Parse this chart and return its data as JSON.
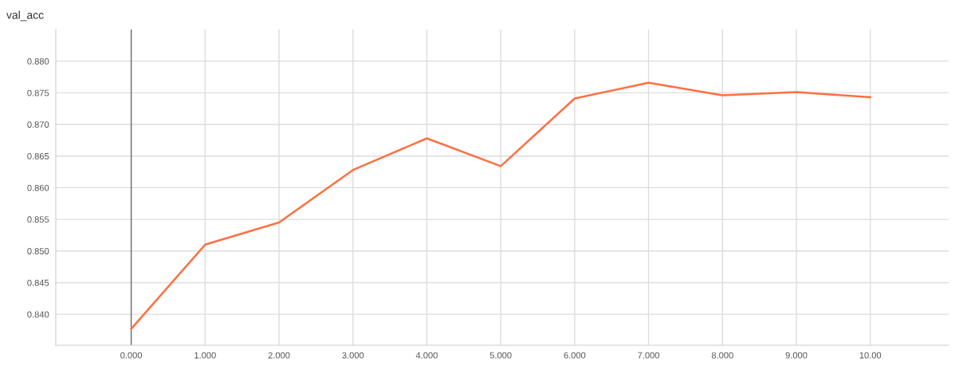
{
  "chart_data": {
    "type": "line",
    "title": "val_acc",
    "x": [
      0,
      1,
      2,
      3,
      4,
      5,
      6,
      7,
      8,
      9,
      10
    ],
    "series": [
      {
        "color": "#ff7043",
        "values": [
          0.8377,
          0.851,
          0.8545,
          0.8628,
          0.8678,
          0.8634,
          0.8741,
          0.8766,
          0.8746,
          0.8751,
          0.8743
        ]
      }
    ],
    "xlim": [
      -1.02,
      11.06
    ],
    "ylim": [
      0.8351,
      0.885
    ],
    "xticks": [
      {
        "value": 0,
        "label": "0.000"
      },
      {
        "value": 1,
        "label": "1.000"
      },
      {
        "value": 2,
        "label": "2.000"
      },
      {
        "value": 3,
        "label": "3.000"
      },
      {
        "value": 4,
        "label": "4.000"
      },
      {
        "value": 5,
        "label": "5.000"
      },
      {
        "value": 6,
        "label": "6.000"
      },
      {
        "value": 7,
        "label": "7.000"
      },
      {
        "value": 8,
        "label": "8.000"
      },
      {
        "value": 9,
        "label": "9.000"
      },
      {
        "value": 10,
        "label": "10.00"
      }
    ],
    "yticks": [
      {
        "value": 0.84,
        "label": "0.840"
      },
      {
        "value": 0.845,
        "label": "0.845"
      },
      {
        "value": 0.85,
        "label": "0.850"
      },
      {
        "value": 0.855,
        "label": "0.855"
      },
      {
        "value": 0.86,
        "label": "0.860"
      },
      {
        "value": 0.865,
        "label": "0.865"
      },
      {
        "value": 0.87,
        "label": "0.870"
      },
      {
        "value": 0.875,
        "label": "0.875"
      },
      {
        "value": 0.88,
        "label": "0.880"
      }
    ],
    "ref_lines": [
      {
        "axis": "x",
        "value": 0,
        "color": "#6e6e6e"
      }
    ],
    "grid": true,
    "legend": false,
    "marker": "none",
    "line_style": "solid"
  }
}
